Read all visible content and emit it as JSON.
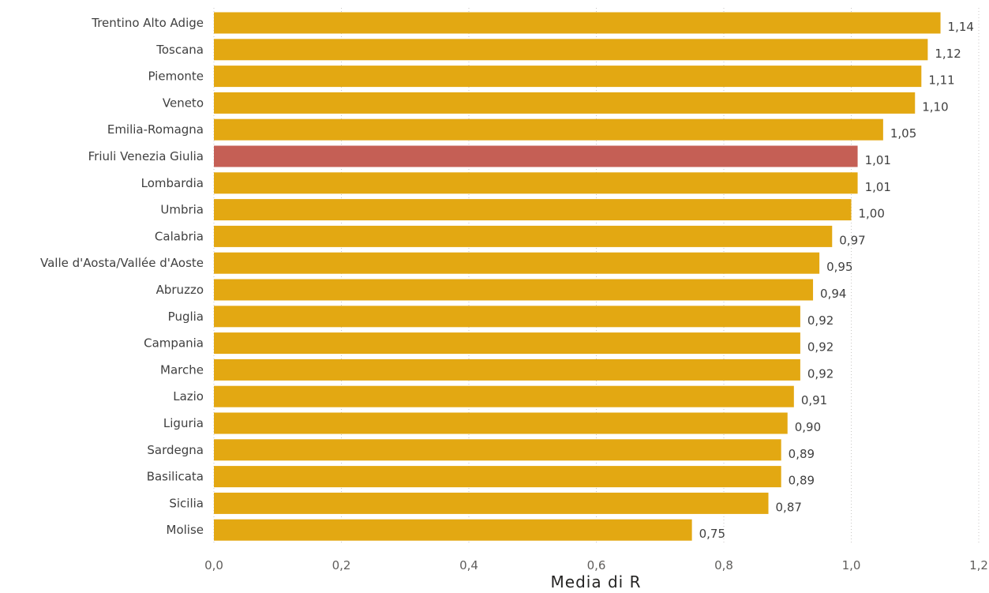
{
  "chart_data": {
    "type": "bar",
    "orientation": "horizontal",
    "categories": [
      "Trentino Alto Adige",
      "Toscana",
      "Piemonte",
      "Veneto",
      "Emilia-Romagna",
      "Friuli Venezia Giulia",
      "Lombardia",
      "Umbria",
      "Calabria",
      "Valle d'Aosta/Vallée d'Aoste",
      "Abruzzo",
      "Puglia",
      "Campania",
      "Marche",
      "Lazio",
      "Liguria",
      "Sardegna",
      "Basilicata",
      "Sicilia",
      "Molise"
    ],
    "values": [
      1.14,
      1.12,
      1.11,
      1.1,
      1.05,
      1.01,
      1.01,
      1.0,
      0.97,
      0.95,
      0.94,
      0.92,
      0.92,
      0.92,
      0.91,
      0.9,
      0.89,
      0.89,
      0.87,
      0.75
    ],
    "value_labels": [
      "1,14",
      "1,12",
      "1,11",
      "1,10",
      "1,05",
      "1,01",
      "1,01",
      "1,00",
      "0,97",
      "0,95",
      "0,94",
      "0,92",
      "0,92",
      "0,92",
      "0,91",
      "0,90",
      "0,89",
      "0,89",
      "0,87",
      "0,75"
    ],
    "highlight_category": "Friuli Venezia Giulia",
    "colors": {
      "bar": "#E3A812",
      "highlight": "#C55F55"
    },
    "xlabel": "Media di R",
    "ylabel": "",
    "xlim": [
      0,
      1.2
    ],
    "xticks": [
      0,
      0.2,
      0.4,
      0.6,
      0.8,
      1.0,
      1.2
    ],
    "xtick_labels": [
      "0,0",
      "0,2",
      "0,4",
      "0,6",
      "0,8",
      "1,0",
      "1,2"
    ],
    "grid": true
  }
}
